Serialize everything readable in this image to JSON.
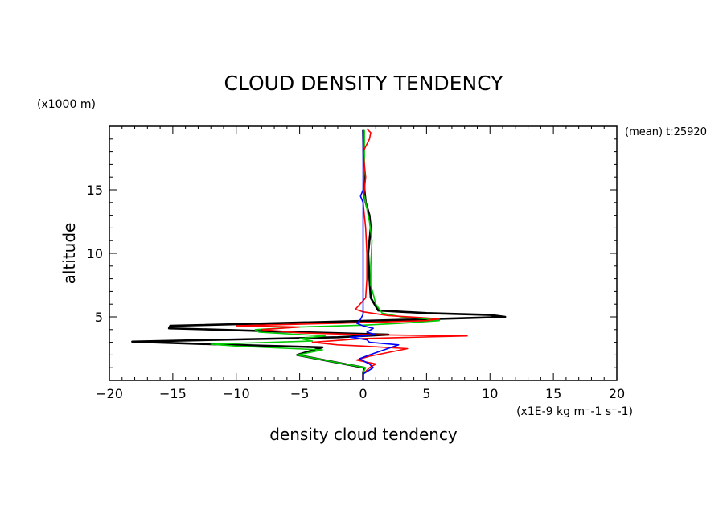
{
  "chart_data": {
    "type": "line",
    "title": "CLOUD DENSITY TENDENCY",
    "xlabel": "density cloud tendency",
    "x_unit": "(x1E-9 kg m⁻-1 s⁻-1)",
    "ylabel": "altitude",
    "y_unit": "(x1000 m)",
    "annotation": "(mean) t:25920",
    "xlim": [
      -20,
      20
    ],
    "ylim": [
      0,
      20
    ],
    "x_ticks": [
      -20,
      -15,
      -10,
      -5,
      0,
      5,
      10,
      15,
      20
    ],
    "y_ticks": [
      5,
      10,
      15
    ],
    "grid": false,
    "series": [
      {
        "color": "#000000",
        "points": [
          [
            0,
            0
          ],
          [
            0,
            0.6
          ],
          [
            0.1,
            1.0
          ],
          [
            -1.5,
            1.3
          ],
          [
            -5.2,
            2.0
          ],
          [
            -3.2,
            2.6
          ],
          [
            -12,
            2.85
          ],
          [
            -18.2,
            3.05
          ],
          [
            -2,
            3.4
          ],
          [
            0,
            3.5
          ],
          [
            2,
            3.6
          ],
          [
            -15.3,
            4.1
          ],
          [
            -15.2,
            4.3
          ],
          [
            -3,
            4.6
          ],
          [
            8,
            4.9
          ],
          [
            11.2,
            5.0
          ],
          [
            10,
            5.15
          ],
          [
            5,
            5.3
          ],
          [
            1.2,
            5.5
          ],
          [
            0.6,
            6.5
          ],
          [
            0.5,
            8
          ],
          [
            0.4,
            10
          ],
          [
            0.5,
            11
          ],
          [
            0.6,
            12
          ],
          [
            0.5,
            13
          ],
          [
            0.2,
            14
          ],
          [
            0.1,
            15
          ],
          [
            0.05,
            17
          ],
          [
            0,
            19.7
          ]
        ]
      },
      {
        "color": "#00cc00",
        "points": [
          [
            0,
            0
          ],
          [
            0,
            0.6
          ],
          [
            0.2,
            1.0
          ],
          [
            -1.5,
            1.3
          ],
          [
            -5.2,
            2.0
          ],
          [
            -3.2,
            2.4
          ],
          [
            -10,
            2.7
          ],
          [
            -12,
            2.85
          ],
          [
            -4,
            3.1
          ],
          [
            -5,
            3.3
          ],
          [
            -3,
            3.5
          ],
          [
            -8.2,
            3.8
          ],
          [
            -8.5,
            4.0
          ],
          [
            -5,
            4.2
          ],
          [
            0,
            4.35
          ],
          [
            3,
            4.5
          ],
          [
            6,
            4.7
          ],
          [
            5,
            4.85
          ],
          [
            3,
            5.0
          ],
          [
            1.5,
            5.3
          ],
          [
            1.0,
            6.0
          ],
          [
            0.8,
            6.8
          ],
          [
            0.6,
            7.5
          ],
          [
            0.6,
            9
          ],
          [
            0.7,
            11
          ],
          [
            0.5,
            12.5
          ],
          [
            0.2,
            14
          ],
          [
            0,
            15
          ],
          [
            0.1,
            17
          ],
          [
            0.1,
            19.7
          ]
        ]
      },
      {
        "color": "#ff0000",
        "points": [
          [
            0,
            0
          ],
          [
            0,
            0.5
          ],
          [
            0.5,
            1.0
          ],
          [
            1,
            1.3
          ],
          [
            -0.5,
            1.6
          ],
          [
            0.5,
            1.9
          ],
          [
            3.5,
            2.5
          ],
          [
            0,
            2.7
          ],
          [
            -2,
            2.8
          ],
          [
            -4,
            3.0
          ],
          [
            0,
            3.3
          ],
          [
            8.2,
            3.5
          ],
          [
            0,
            3.6
          ],
          [
            -5,
            3.75
          ],
          [
            -8,
            4.0
          ],
          [
            -5,
            4.2
          ],
          [
            -10,
            4.3
          ],
          [
            -2,
            4.5
          ],
          [
            5,
            4.7
          ],
          [
            6,
            4.85
          ],
          [
            2,
            5.1
          ],
          [
            0,
            5.4
          ],
          [
            -0.6,
            5.6
          ],
          [
            0.2,
            6.5
          ],
          [
            0.3,
            8
          ],
          [
            0.3,
            10
          ],
          [
            0.2,
            12
          ],
          [
            0,
            14
          ],
          [
            0.1,
            15
          ],
          [
            0.2,
            16
          ],
          [
            0.1,
            17
          ],
          [
            0,
            18
          ],
          [
            0.5,
            19
          ],
          [
            0.6,
            19.5
          ],
          [
            0.3,
            19.8
          ]
        ]
      },
      {
        "color": "#0000ff",
        "points": [
          [
            0,
            0
          ],
          [
            0,
            0.5
          ],
          [
            0.8,
            1.0
          ],
          [
            0.5,
            1.3
          ],
          [
            -0.3,
            1.7
          ],
          [
            0.5,
            2.0
          ],
          [
            2.8,
            2.8
          ],
          [
            0.5,
            3.0
          ],
          [
            0.3,
            3.2
          ],
          [
            -1,
            3.4
          ],
          [
            1,
            3.6
          ],
          [
            0.3,
            3.8
          ],
          [
            0.8,
            4.1
          ],
          [
            0,
            4.3
          ],
          [
            -0.5,
            4.5
          ],
          [
            -0.2,
            4.8
          ],
          [
            0,
            5.2
          ],
          [
            0,
            7
          ],
          [
            0,
            10
          ],
          [
            0,
            12
          ],
          [
            0,
            14
          ],
          [
            -0.2,
            14.5
          ],
          [
            0,
            15
          ],
          [
            0,
            19.7
          ]
        ]
      }
    ]
  }
}
